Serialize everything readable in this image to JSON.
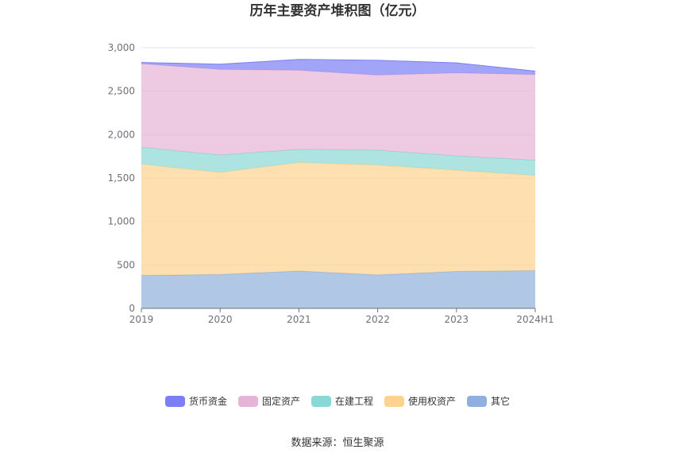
{
  "chart_data": {
    "type": "area",
    "stacked": true,
    "title": "历年主要资产堆积图（亿元）",
    "categories": [
      "2019",
      "2020",
      "2021",
      "2022",
      "2023",
      "2024H1"
    ],
    "ylim": [
      0,
      3000
    ],
    "yticks": [
      "0",
      "500",
      "1,000",
      "1,500",
      "2,000",
      "2,500",
      "3,000"
    ],
    "ytick_values": [
      0,
      500,
      1000,
      1500,
      2000,
      2500,
      3000
    ],
    "grid": true,
    "legend_position": "bottom",
    "series": [
      {
        "name": "其它",
        "color": "#8fb0dc",
        "values": [
          380,
          390,
          430,
          385,
          425,
          435
        ]
      },
      {
        "name": "使用权资产",
        "color": "#fdd38f",
        "values": [
          1280,
          1175,
          1250,
          1265,
          1165,
          1095
        ]
      },
      {
        "name": "在建工程",
        "color": "#8ad8d6",
        "values": [
          195,
          200,
          150,
          170,
          165,
          175
        ]
      },
      {
        "name": "固定资产",
        "color": "#e6b4d6",
        "values": [
          960,
          985,
          910,
          865,
          955,
          985
        ]
      },
      {
        "name": "货币资金",
        "color": "#7b7ff3",
        "values": [
          15,
          60,
          125,
          170,
          115,
          40
        ]
      }
    ],
    "legend_order": [
      "货币资金",
      "固定资产",
      "在建工程",
      "使用权资产",
      "其它"
    ]
  },
  "source_text": "数据来源：恒生聚源"
}
